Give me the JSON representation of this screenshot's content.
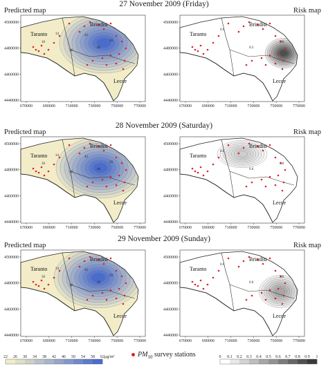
{
  "rows": [
    {
      "title": "27 November 2009 (Friday)",
      "left_label": "Predicted map",
      "right_label": "Risk map"
    },
    {
      "title": "28 November 2009 (Saturday)",
      "left_label": "Predicted map",
      "right_label": "Risk map"
    },
    {
      "title": "29 November 2009 (Sunday)",
      "left_label": "Predicted map",
      "right_label": "Risk map"
    }
  ],
  "axes": {
    "x_ticks": [
      "670000",
      "690000",
      "710000",
      "730000",
      "750000",
      "770000"
    ],
    "y_ticks": [
      "4500000",
      "4480000",
      "4460000",
      "4440000"
    ]
  },
  "cities": {
    "taranto": "Taranto",
    "brindisi": "Brindisi",
    "lecce": "Lecce"
  },
  "contour_labels": {
    "predicted_1": [
      "30",
      "34",
      "38",
      "42",
      "46",
      "50"
    ],
    "predicted_2": [
      "30",
      "34",
      "38",
      "42",
      "46",
      "50"
    ],
    "predicted_3": [
      "30",
      "34",
      "38",
      "42",
      "46",
      "50"
    ],
    "risk_1": [
      "0.0",
      "0.2",
      "0.0"
    ],
    "risk_2": [
      "0.0",
      "0.0",
      "0.0"
    ],
    "risk_3": [
      "0.0",
      "0.0",
      "0.0"
    ]
  },
  "legend": {
    "pred_ticks": [
      "22",
      "26",
      "30",
      "34",
      "38",
      "42",
      "46",
      "50",
      "54",
      "58",
      "62"
    ],
    "pred_unit": "μg/m³",
    "risk_ticks": [
      "0",
      "0.1",
      "0.2",
      "0.3",
      "0.4",
      "0.5",
      "0.6",
      "0.7",
      "0.8",
      "0.9",
      "1"
    ],
    "survey_label_prefix": "PM",
    "survey_label_sub": "10",
    "survey_label_suffix": " survey stations"
  },
  "colors": {
    "pred_low": "#f2edc8",
    "pred_high": "#4a6ccc",
    "risk_low": "#ffffff",
    "risk_high": "#3a3a3a",
    "station": "#dd2222"
  }
}
